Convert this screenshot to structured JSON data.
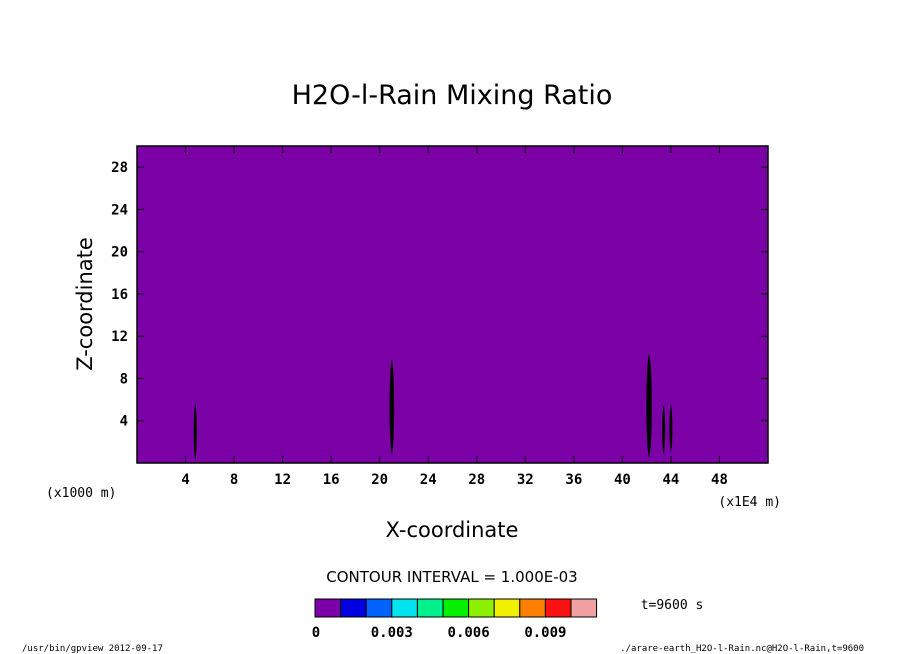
{
  "chart_data": {
    "type": "heatmap",
    "title": "H2O-l-Rain Mixing Ratio",
    "xlabel": "X-coordinate",
    "ylabel": "Z-coordinate",
    "x_unit": "(x1E4 m)",
    "y_unit": "(x1000 m)",
    "xlim": [
      0,
      52
    ],
    "ylim": [
      0,
      30
    ],
    "x_ticks": [
      4,
      8,
      12,
      16,
      20,
      24,
      28,
      32,
      36,
      40,
      44,
      48
    ],
    "y_ticks": [
      4,
      8,
      12,
      16,
      20,
      24,
      28
    ],
    "background_fill_color": "#7b00a6",
    "contour_interval": "CONTOUR INTERVAL = 1.000E-03",
    "colorbar": {
      "colors": [
        "#7b00a6",
        "#0000e0",
        "#0062ff",
        "#00e4f0",
        "#00f08c",
        "#00f000",
        "#8cf000",
        "#f0f000",
        "#ff8000",
        "#ff1010",
        "#f0a0a0"
      ],
      "labels": [
        "0",
        "0.003",
        "0.006",
        "0.009"
      ]
    },
    "features": [
      {
        "x": 4.8,
        "z_min": 0.3,
        "z_max": 5.6,
        "half_width": 0.12
      },
      {
        "x": 21.0,
        "z_min": 0.8,
        "z_max": 9.8,
        "half_width": 0.25
      },
      {
        "x": 42.2,
        "z_min": 0.5,
        "z_max": 10.3,
        "half_width": 0.3
      },
      {
        "x": 43.4,
        "z_min": 0.8,
        "z_max": 5.5,
        "half_width": 0.15
      },
      {
        "x": 44.0,
        "z_min": 1.0,
        "z_max": 5.6,
        "half_width": 0.12
      }
    ]
  },
  "time_label": "t=9600 s",
  "footer_left": "/usr/bin/gpview  2012-09-17",
  "footer_right": "./arare-earth_H2O-l-Rain.nc@H2O-l-Rain,t=9600"
}
